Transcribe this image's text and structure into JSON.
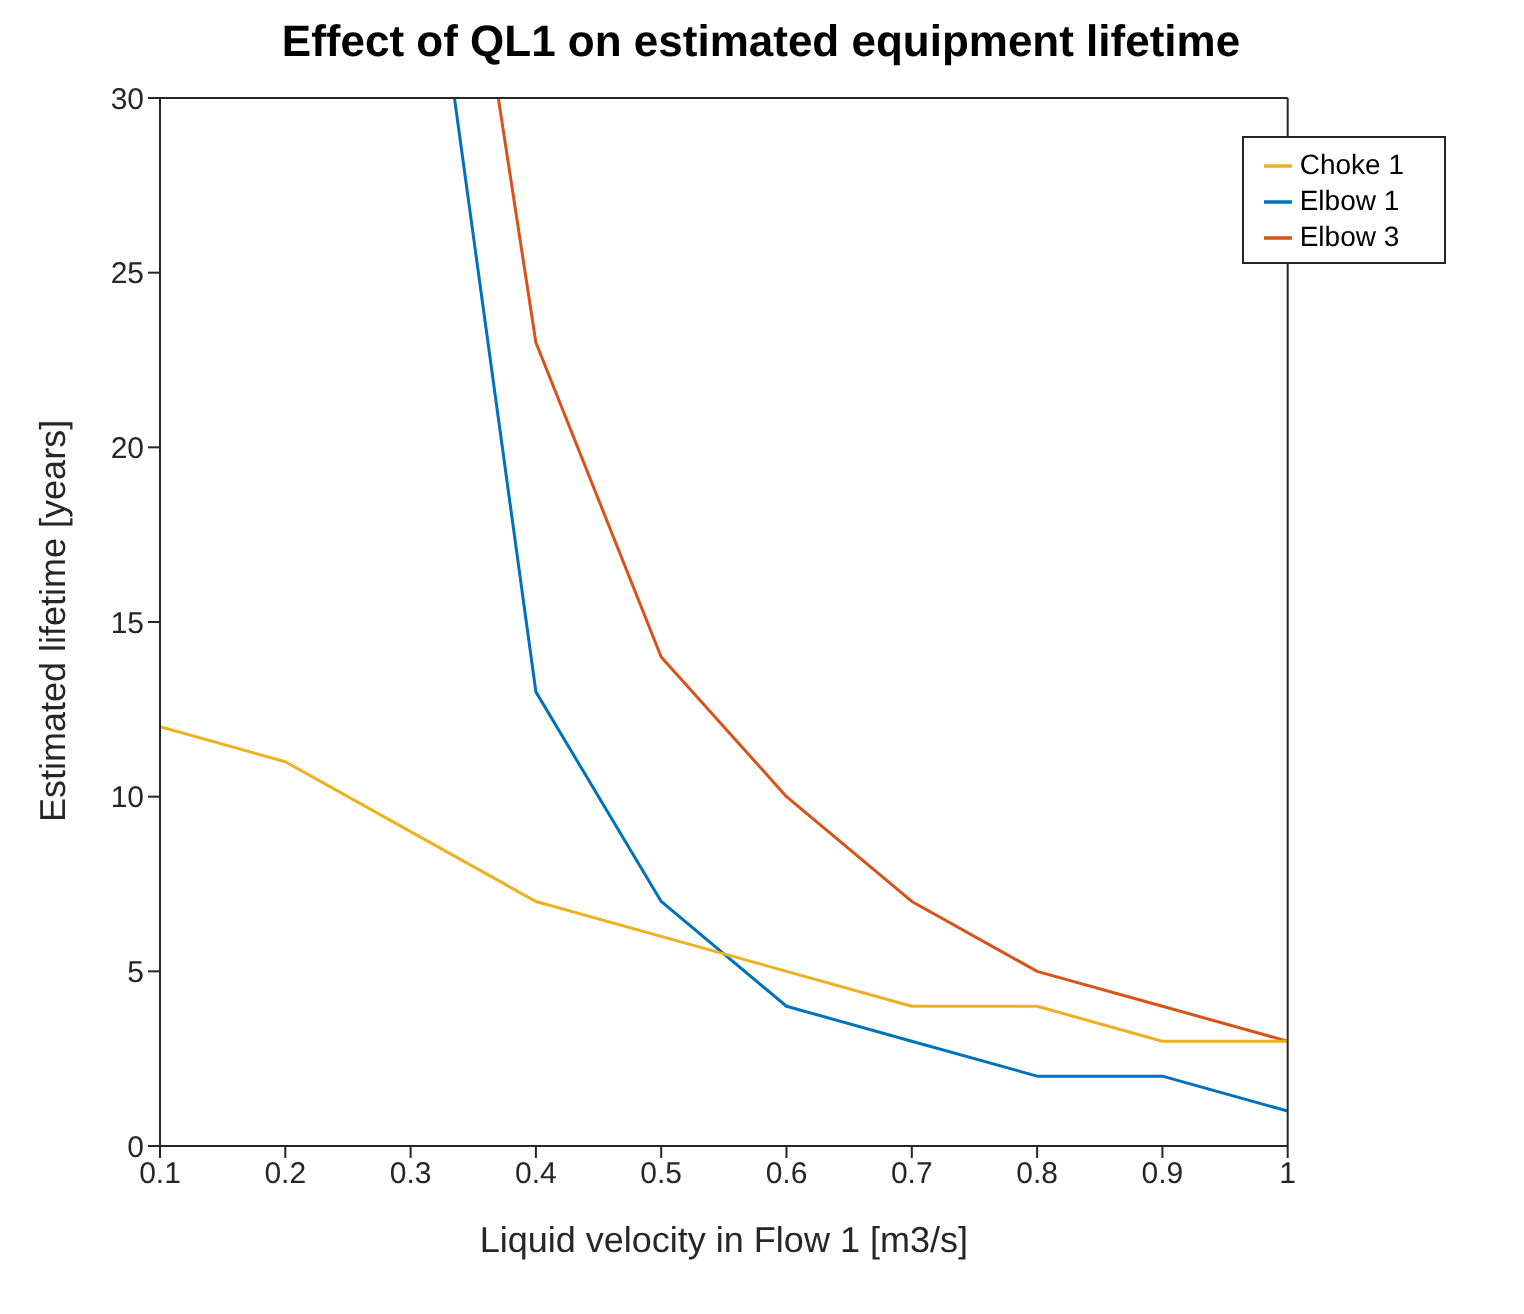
{
  "chart_data": {
    "type": "line",
    "title": "Effect of QL1 on estimated equipment lifetime",
    "xlabel": "Liquid velocity in Flow 1 [m3/s]",
    "ylabel": "Estimated lifetime [years]",
    "xlim": [
      0.1,
      1
    ],
    "xticks": [
      0.1,
      0.2,
      0.3,
      0.4,
      0.5,
      0.6,
      0.7,
      0.8,
      0.9,
      1
    ],
    "ylim": [
      0,
      30
    ],
    "yticks": [
      0,
      5,
      10,
      15,
      20,
      25,
      30
    ],
    "grid": false,
    "legend": "top right",
    "marker": "none",
    "line_style": "solid",
    "series": [
      {
        "name": "Elbow 1",
        "color": "#0072bd",
        "x": [
          0.335,
          0.4,
          0.5,
          0.6,
          0.7,
          0.8,
          0.9,
          1
        ],
        "values": [
          30,
          13,
          7,
          4,
          3,
          2,
          2,
          1
        ]
      },
      {
        "name": "Elbow 3",
        "color": "#d95319",
        "x": [
          0.37,
          0.4,
          0.5,
          0.6,
          0.7,
          0.8,
          0.9,
          1
        ],
        "values": [
          30,
          23,
          14,
          10,
          7,
          5,
          4,
          3
        ]
      },
      {
        "name": "Choke 1",
        "color": "#edb120",
        "x": [
          0.1,
          0.2,
          0.3,
          0.4,
          0.5,
          0.6,
          0.7,
          0.8,
          0.9,
          1
        ],
        "values": [
          12,
          11,
          9,
          7,
          6,
          5,
          4,
          4,
          3,
          3
        ]
      }
    ]
  }
}
